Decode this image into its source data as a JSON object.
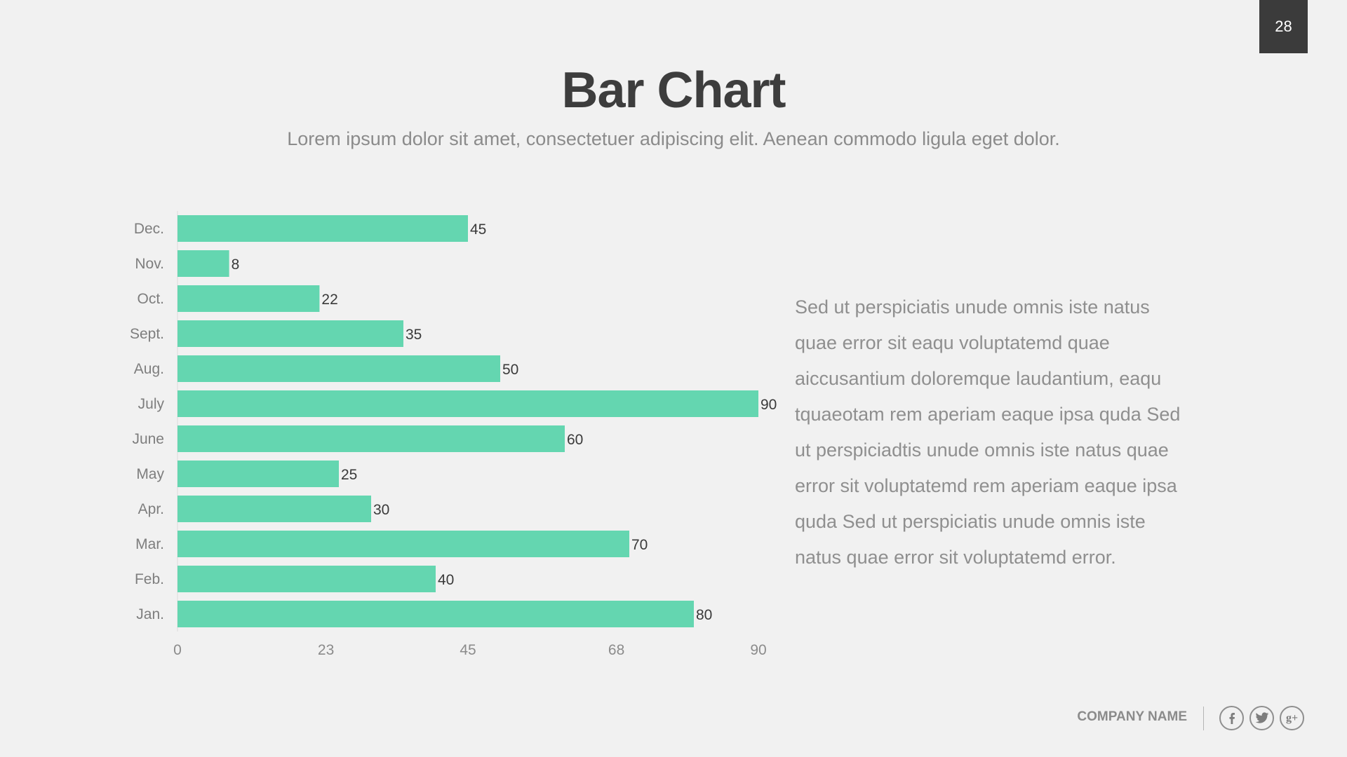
{
  "page_number": "28",
  "header": {
    "title": "Bar Chart",
    "subtitle": "Lorem ipsum dolor sit amet, consectetuer adipiscing elit. Aenean commodo ligula eget dolor."
  },
  "body_text": "Sed ut perspiciatis unude omnis iste natus quae error sit eaqu voluptatemd quae aiccusantium doloremque laudantium, eaqu tquaeotam rem aperiam eaque ipsa quda Sed ut perspiciadtis unude omnis iste natus quae error sit voluptatemd rem aperiam eaque ipsa quda Sed ut perspiciatis unude omnis iste natus quae error sit voluptatemd error.",
  "footer": {
    "company_name": "COMPANY NAME",
    "social_icons": [
      "facebook-icon",
      "twitter-icon",
      "google-plus-icon"
    ],
    "google_plus_glyph": "g+"
  },
  "colors": {
    "bar": "#64d6b0",
    "page_number_bg": "#3b3b3b",
    "title": "#3d3d3d",
    "muted_text": "#8b8b8b"
  },
  "chart_data": {
    "type": "bar",
    "orientation": "horizontal",
    "categories": [
      "Dec.",
      "Nov.",
      "Oct.",
      "Sept.",
      "Aug.",
      "July",
      "June",
      "May",
      "Apr.",
      "Mar.",
      "Feb.",
      "Jan."
    ],
    "values": [
      45,
      8,
      22,
      35,
      50,
      90,
      60,
      25,
      30,
      70,
      40,
      80
    ],
    "xticks": [
      "0",
      "23",
      "45",
      "68",
      "90"
    ],
    "xlim": [
      0,
      90
    ],
    "data_labels": true,
    "grid": false,
    "legend": "none"
  }
}
